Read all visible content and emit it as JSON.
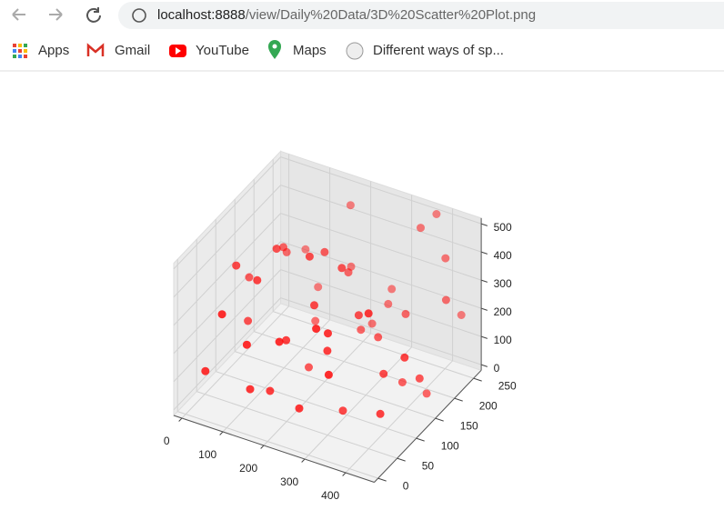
{
  "browser": {
    "url_host": "localhost:8888",
    "url_path": "/view/Daily%20Data/3D%20Scatter%20Plot.png",
    "bookmarks": [
      "Apps",
      "Gmail",
      "YouTube",
      "Maps",
      "Different ways of sp..."
    ]
  },
  "chart_data": {
    "type": "scatter3d",
    "color": "#ff0000",
    "x": [
      20,
      60,
      110,
      150,
      180,
      230,
      260,
      300,
      330,
      370,
      410,
      440,
      30,
      90,
      140,
      190,
      240,
      280,
      320,
      360,
      400,
      450,
      50,
      100,
      170,
      210,
      250,
      290,
      350,
      390,
      430,
      15,
      70,
      130,
      200,
      270,
      310,
      380,
      420,
      460,
      40,
      120,
      160,
      220,
      300,
      340,
      440,
      80,
      180,
      260
    ],
    "y": [
      30,
      200,
      120,
      60,
      240,
      90,
      180,
      20,
      150,
      260,
      70,
      210,
      100,
      250,
      10,
      160,
      40,
      230,
      110,
      190,
      50,
      130,
      260,
      80,
      140,
      20,
      220,
      60,
      240,
      100,
      170,
      150,
      20,
      200,
      110,
      250,
      40,
      160,
      230,
      80,
      120,
      40,
      260,
      190,
      90,
      10,
      250,
      170,
      70,
      130
    ],
    "z": [
      100,
      300,
      450,
      50,
      250,
      350,
      150,
      400,
      200,
      500,
      80,
      300,
      380,
      120,
      280,
      420,
      60,
      180,
      330,
      240,
      460,
      140,
      220,
      390,
      30,
      310,
      110,
      260,
      470,
      170,
      20,
      260,
      340,
      90,
      480,
      200,
      360,
      50,
      410,
      290,
      160,
      70,
      430,
      320,
      10,
      270,
      190,
      370,
      230,
      440
    ],
    "xlim": [
      -20,
      470
    ],
    "ylim": [
      -10,
      270
    ],
    "zlim": [
      -20,
      520
    ],
    "xticks": [
      0,
      100,
      200,
      300,
      400
    ],
    "yticks": [
      0,
      50,
      100,
      150,
      200,
      250
    ],
    "zticks": [
      0,
      100,
      200,
      300,
      400,
      500
    ],
    "grid": true
  }
}
